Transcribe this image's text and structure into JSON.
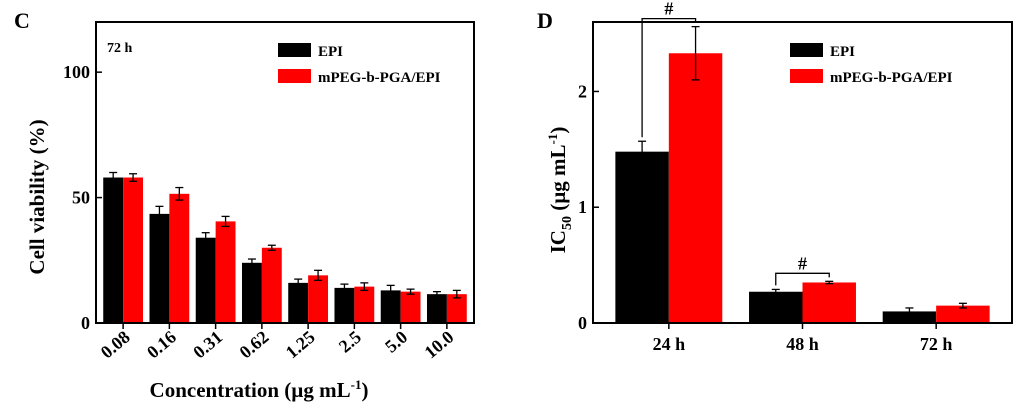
{
  "panels": {
    "left": "C",
    "right": "D"
  },
  "chart_data": [
    {
      "type": "bar",
      "panel": "C",
      "annotation": "72 h",
      "categories": [
        "0.08",
        "0.16",
        "0.31",
        "0.62",
        "1.25",
        "2.5",
        "5.0",
        "10.0"
      ],
      "series": [
        {
          "name": "EPI",
          "color": "#000000",
          "values": [
            58,
            43.5,
            34,
            24,
            16,
            14,
            13,
            11.5
          ],
          "errors": [
            2,
            3,
            2,
            1.5,
            1.5,
            1.5,
            2,
            1
          ]
        },
        {
          "name": "mPEG-b-PGA/EPI",
          "color": "#ff0000",
          "values": [
            58,
            51.5,
            40.5,
            30,
            19,
            14.5,
            12.5,
            11.5
          ],
          "errors": [
            1.5,
            2.5,
            2,
            1,
            2,
            1.5,
            1,
            1.5
          ]
        }
      ],
      "xlabel": {
        "main": "Concentration (µg mL",
        "sup": "-1",
        "close": ")"
      },
      "ylabel": "Cell viability (%)",
      "yticks": [
        "0",
        "50",
        "100"
      ],
      "ylim": [
        0,
        120
      ],
      "legend_position": "top-right"
    },
    {
      "type": "bar",
      "panel": "D",
      "categories": [
        "24 h",
        "48 h",
        "72 h"
      ],
      "series": [
        {
          "name": "EPI",
          "color": "#000000",
          "values": [
            1.48,
            0.27,
            0.1
          ],
          "errors": [
            0.09,
            0.02,
            0.03
          ]
        },
        {
          "name": "mPEG-b-PGA/EPI",
          "color": "#ff0000",
          "values": [
            2.33,
            0.35,
            0.15
          ],
          "errors": [
            0.23,
            0.01,
            0.02
          ]
        }
      ],
      "ylabel": {
        "main": "IC",
        "sub": "50",
        "unit": " (µg mL",
        "sup": "-1",
        "close": ")"
      },
      "yticks": [
        "0",
        "1",
        "2"
      ],
      "ylim": [
        0,
        2.6
      ],
      "significance": [
        {
          "label": "#",
          "category": "24 h"
        },
        {
          "label": "#",
          "category": "48 h"
        }
      ],
      "legend_position": "top-right"
    }
  ]
}
